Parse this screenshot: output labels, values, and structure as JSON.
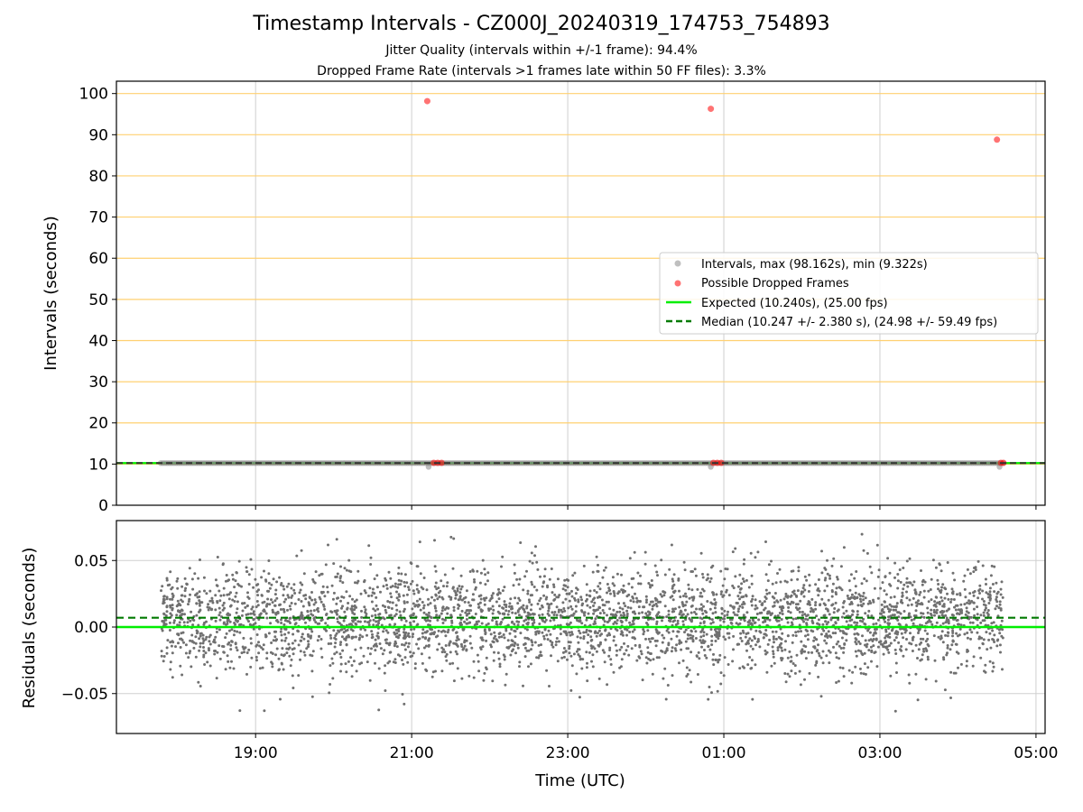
{
  "title": "Timestamp Intervals - CZ000J_20240319_174753_754893",
  "subtitle_1": "Jitter Quality (intervals within +/-1 frame): 94.4%",
  "subtitle_2": "Dropped Frame Rate (intervals >1 frames late within 50 FF files): 3.3%",
  "colors": {
    "intervals": "#808080",
    "dropped": "#ff0000",
    "expected": "#00ee00",
    "median": "#007a00",
    "hgrid": "#ffd070",
    "grid": "#cfcfcf",
    "residuals": "#707070"
  },
  "chart_data": [
    {
      "type": "scatter",
      "panel": "top",
      "ylabel": "Intervals (seconds)",
      "ylim": [
        0,
        103
      ],
      "yticks": [
        0,
        10,
        20,
        30,
        40,
        50,
        60,
        70,
        80,
        90,
        100
      ],
      "xlim": [
        "17:13",
        "05:07"
      ],
      "x_ticks": [
        "19:00",
        "21:00",
        "23:00",
        "01:00",
        "03:00",
        "05:00"
      ],
      "grid": true,
      "legend_position": "center-right",
      "series": [
        {
          "name": "Intervals, max (98.162s), min (9.322s)",
          "kind": "scatter",
          "x_range": [
            "17:47",
            "04:35"
          ],
          "typical_value": 10.24,
          "low_points": [
            {
              "x": "21:13",
              "y": 9.32
            },
            {
              "x": "00:50",
              "y": 9.32
            },
            {
              "x": "04:32",
              "y": 9.32
            }
          ]
        },
        {
          "name": "Possible Dropped Frames",
          "kind": "scatter",
          "points": [
            {
              "x": "21:12",
              "y": 98.16
            },
            {
              "x": "00:50",
              "y": 96.3
            },
            {
              "x": "04:30",
              "y": 88.8
            },
            {
              "x": "21:17",
              "y": 10.3
            },
            {
              "x": "21:20",
              "y": 10.3
            },
            {
              "x": "21:23",
              "y": 10.3
            },
            {
              "x": "00:52",
              "y": 10.3
            },
            {
              "x": "00:55",
              "y": 10.3
            },
            {
              "x": "00:58",
              "y": 10.3
            },
            {
              "x": "04:33",
              "y": 10.3
            },
            {
              "x": "04:35",
              "y": 10.3
            }
          ]
        },
        {
          "name": "Expected (10.240s), (25.00 fps)",
          "kind": "hline",
          "y": 10.24
        },
        {
          "name": "Median (10.247 +/- 2.380 s), (24.98 +/- 59.49 fps)",
          "kind": "hline-dashed",
          "y": 10.247
        }
      ]
    },
    {
      "type": "scatter",
      "panel": "bottom",
      "xlabel": "Time (UTC)",
      "ylabel": "Residuals (seconds)",
      "ylim": [
        -0.08,
        0.08
      ],
      "yticks": [
        -0.05,
        0.0,
        0.05
      ],
      "ytick_labels": [
        "−0.05",
        "0.00",
        "0.05"
      ],
      "xlim": [
        "17:13",
        "05:07"
      ],
      "x_ticks": [
        "19:00",
        "21:00",
        "23:00",
        "01:00",
        "03:00",
        "05:00"
      ],
      "grid": true,
      "residuals": {
        "x_range": [
          "17:47",
          "04:35"
        ],
        "count": 3800,
        "center": 0.005,
        "spread_sd": 0.02,
        "min": -0.064,
        "max": 0.073
      },
      "expected_line": 0.0,
      "median_line": 0.007
    }
  ]
}
